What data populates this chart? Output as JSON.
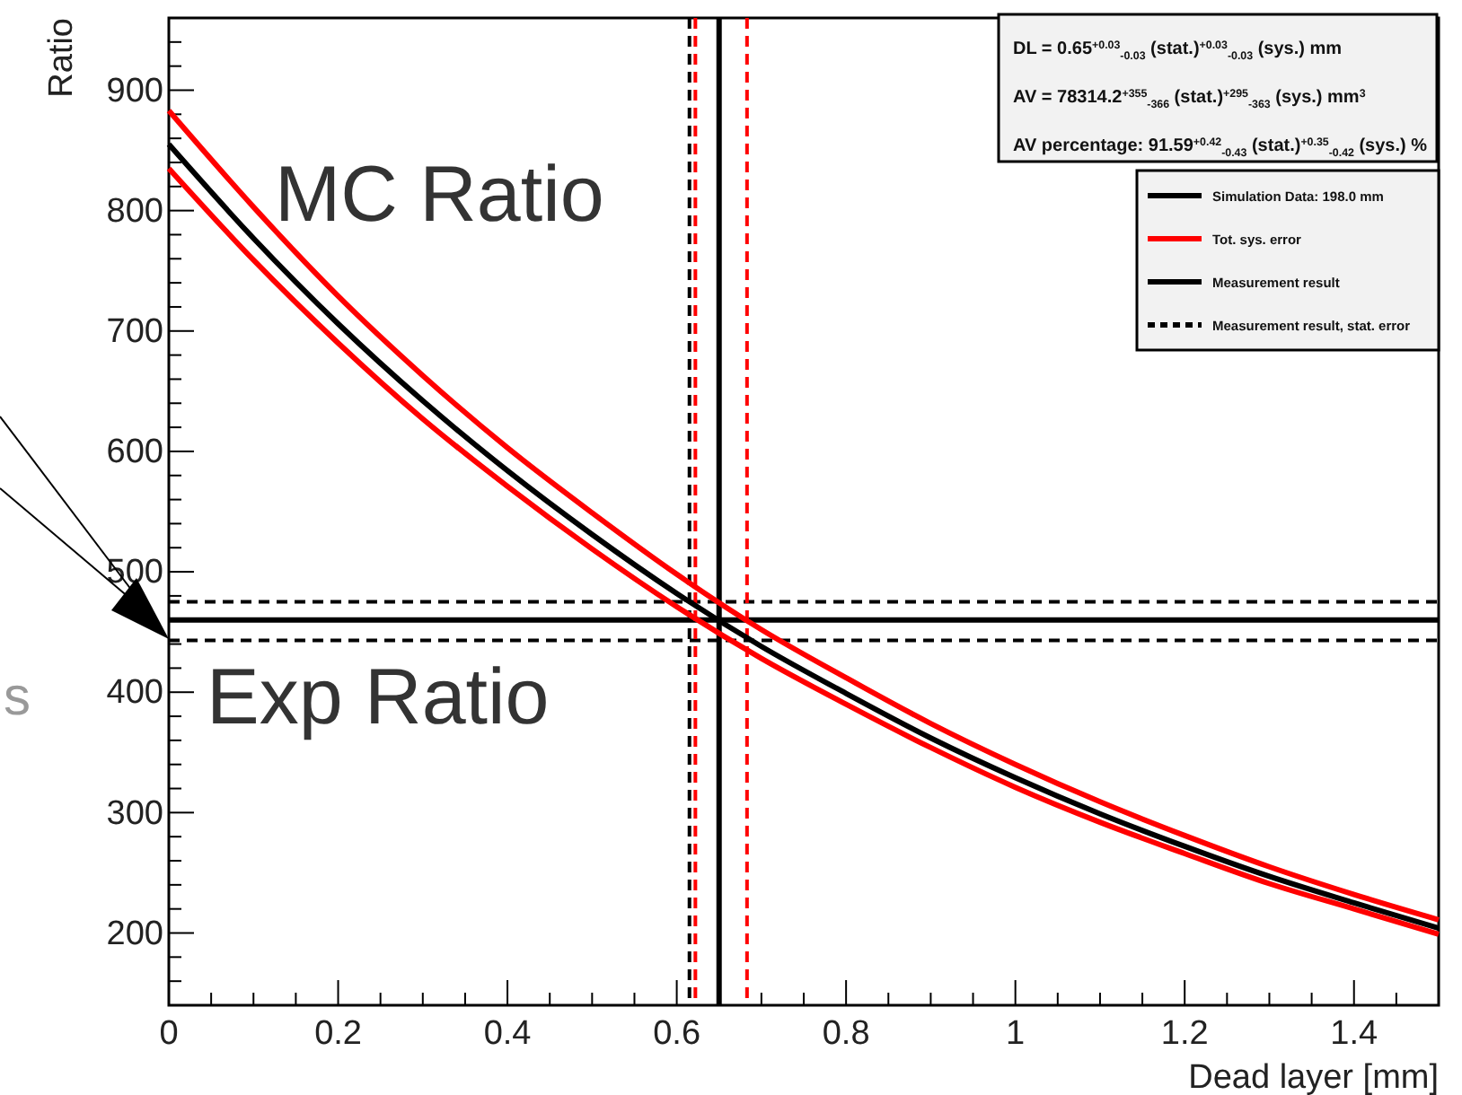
{
  "chart_data": {
    "type": "line",
    "xlabel": "Dead layer [mm]",
    "ylabel": "Ratio",
    "x": [
      0,
      0.1,
      0.2,
      0.3,
      0.4,
      0.5,
      0.6,
      0.7,
      0.8,
      0.9,
      1.0,
      1.1,
      1.2,
      1.3,
      1.4,
      1.5
    ],
    "series": [
      {
        "name": "Simulation Data: 198.0 mm",
        "color": "#000000",
        "values": [
          855,
          777,
          706,
          642,
          584,
          531,
          482,
          438,
          399,
          362,
          329,
          299,
          272,
          247,
          225,
          204
        ]
      },
      {
        "name": "Tot. sys. error",
        "color": "#ff0000",
        "values": [
          883,
          803,
          729,
          663,
          603,
          549,
          498,
          452,
          412,
          374,
          340,
          309,
          281,
          255,
          232,
          211
        ]
      },
      {
        "color": "#ff0000",
        "values": [
          835,
          759,
          690,
          627,
          571,
          519,
          471,
          428,
          390,
          354,
          321,
          292,
          266,
          241,
          220,
          199
        ]
      }
    ],
    "ref_lines": [
      {
        "axis": "y",
        "value": 460,
        "label": "Measurement result",
        "color": "#000000",
        "line_style": "solid"
      },
      {
        "axis": "x",
        "value": 0.65,
        "color": "#000000",
        "line_style": "solid"
      },
      {
        "axis": "y",
        "value": 475,
        "label": "Measurement result, stat. error",
        "color": "#000000",
        "line_style": "dashed"
      },
      {
        "axis": "y",
        "value": 443,
        "color": "#000000",
        "line_style": "dashed"
      },
      {
        "axis": "x",
        "value": 0.615,
        "color": "#000000",
        "line_style": "dashed"
      },
      {
        "axis": "x",
        "value": 0.622,
        "color": "#ff0000",
        "line_style": "dashed"
      },
      {
        "axis": "x",
        "value": 0.683,
        "color": "#ff0000",
        "line_style": "dashed"
      }
    ],
    "xlim": [
      0,
      1.5
    ],
    "ylim": [
      140,
      960
    ],
    "xticks": [
      0,
      {
        "value": 0.05,
        "label": null
      },
      {
        "value": 0.1,
        "label": null
      },
      {
        "value": 0.15,
        "label": null
      },
      0.2,
      {
        "value": 0.25,
        "label": null
      },
      {
        "value": 0.3,
        "label": null
      },
      {
        "value": 0.35,
        "label": null
      },
      0.4,
      {
        "value": 0.45,
        "label": null
      },
      {
        "value": 0.5,
        "label": null
      },
      {
        "value": 0.55,
        "label": null
      },
      0.6,
      {
        "value": 0.65,
        "label": null
      },
      {
        "value": 0.7,
        "label": null
      },
      {
        "value": 0.75,
        "label": null
      },
      0.8,
      {
        "value": 0.85,
        "label": null
      },
      {
        "value": 0.9,
        "label": null
      },
      {
        "value": 0.95,
        "label": null
      },
      1,
      {
        "value": 1.05,
        "label": null
      },
      {
        "value": 1.1,
        "label": null
      },
      {
        "value": 1.15,
        "label": null
      },
      1.2,
      {
        "value": 1.25,
        "label": null
      },
      {
        "value": 1.3,
        "label": null
      },
      {
        "value": 1.35,
        "label": null
      },
      1.4,
      {
        "value": 1.45,
        "label": null
      }
    ],
    "yticks": [
      {
        "value": 160,
        "label": null
      },
      {
        "value": 180,
        "label": null
      },
      200,
      {
        "value": 220,
        "label": null
      },
      {
        "value": 240,
        "label": null
      },
      {
        "value": 260,
        "label": null
      },
      {
        "value": 280,
        "label": null
      },
      300,
      {
        "value": 320,
        "label": null
      },
      {
        "value": 340,
        "label": null
      },
      {
        "value": 360,
        "label": null
      },
      {
        "value": 380,
        "label": null
      },
      400,
      {
        "value": 420,
        "label": null
      },
      {
        "value": 440,
        "label": null
      },
      {
        "value": 460,
        "label": null
      },
      {
        "value": 480,
        "label": null
      },
      500,
      {
        "value": 520,
        "label": null
      },
      {
        "value": 540,
        "label": null
      },
      {
        "value": 560,
        "label": null
      },
      {
        "value": 580,
        "label": null
      },
      600,
      {
        "value": 620,
        "label": null
      },
      {
        "value": 640,
        "label": null
      },
      {
        "value": 660,
        "label": null
      },
      {
        "value": 680,
        "label": null
      },
      700,
      {
        "value": 720,
        "label": null
      },
      {
        "value": 740,
        "label": null
      },
      {
        "value": 760,
        "label": null
      },
      {
        "value": 780,
        "label": null
      },
      800,
      {
        "value": 820,
        "label": null
      },
      {
        "value": 840,
        "label": null
      },
      {
        "value": 860,
        "label": null
      },
      {
        "value": 880,
        "label": null
      },
      900,
      {
        "value": 920,
        "label": null
      },
      {
        "value": 940,
        "label": null
      }
    ],
    "grid": false,
    "legend": "top right",
    "marker": "none",
    "line_style": "solid",
    "annotations": [
      "DL = 0.65$^{+0.03}$$_{-0.03}$ (stat.)$^{+0.03}$$_{-0.03}$ (sys.) mm",
      "AV = 78314.2$^{+355}$$_{-366}$ (stat.)$^{+295}$$_{-363}$ (sys.) mm$^{3}$",
      "AV percentage: 91.59$^{+0.42}$$_{-0.43}$ (stat.)$^{+0.35}$$_{-0.42}$ (sys.) %",
      "MC Ratio",
      "Exp Ratio",
      "s"
    ]
  }
}
